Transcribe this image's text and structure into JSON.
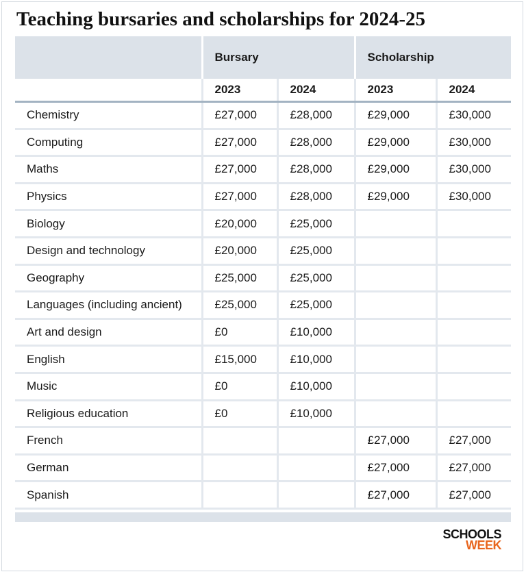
{
  "title": "Teaching bursaries and scholarships for 2024-25",
  "table": {
    "groups": [
      "Bursary",
      "Scholarship"
    ],
    "years": [
      "2023",
      "2024",
      "2023",
      "2024"
    ],
    "rows": [
      {
        "subject": "Chemistry",
        "cells": [
          "£27,000",
          "£28,000",
          "£29,000",
          "£30,000"
        ]
      },
      {
        "subject": "Computing",
        "cells": [
          "£27,000",
          "£28,000",
          "£29,000",
          "£30,000"
        ]
      },
      {
        "subject": "Maths",
        "cells": [
          "£27,000",
          "£28,000",
          "£29,000",
          "£30,000"
        ]
      },
      {
        "subject": "Physics",
        "cells": [
          "£27,000",
          "£28,000",
          "£29,000",
          "£30,000"
        ]
      },
      {
        "subject": "Biology",
        "cells": [
          "£20,000",
          "£25,000",
          null,
          null
        ]
      },
      {
        "subject": "Design and technology",
        "cells": [
          "£20,000",
          "£25,000",
          null,
          null
        ]
      },
      {
        "subject": "Geography",
        "cells": [
          "£25,000",
          "£25,000",
          null,
          null
        ]
      },
      {
        "subject": "Languages (including ancient)",
        "cells": [
          "£25,000",
          "£25,000",
          null,
          null
        ]
      },
      {
        "subject": "Art and design",
        "cells": [
          "£0",
          "£10,000",
          null,
          null
        ]
      },
      {
        "subject": "English",
        "cells": [
          "£15,000",
          "£10,000",
          null,
          null
        ]
      },
      {
        "subject": "Music",
        "cells": [
          "£0",
          "£10,000",
          null,
          null
        ]
      },
      {
        "subject": "Religious education",
        "cells": [
          "£0",
          "£10,000",
          null,
          null
        ]
      },
      {
        "subject": "French",
        "cells": [
          null,
          null,
          "£27,000",
          "£27,000"
        ]
      },
      {
        "subject": "German",
        "cells": [
          null,
          null,
          "£27,000",
          "£27,000"
        ]
      },
      {
        "subject": "Spanish",
        "cells": [
          null,
          null,
          "£27,000",
          "£27,000"
        ]
      }
    ]
  },
  "logo": {
    "line1": "SCHOOLS",
    "line2": "WEEK"
  }
}
